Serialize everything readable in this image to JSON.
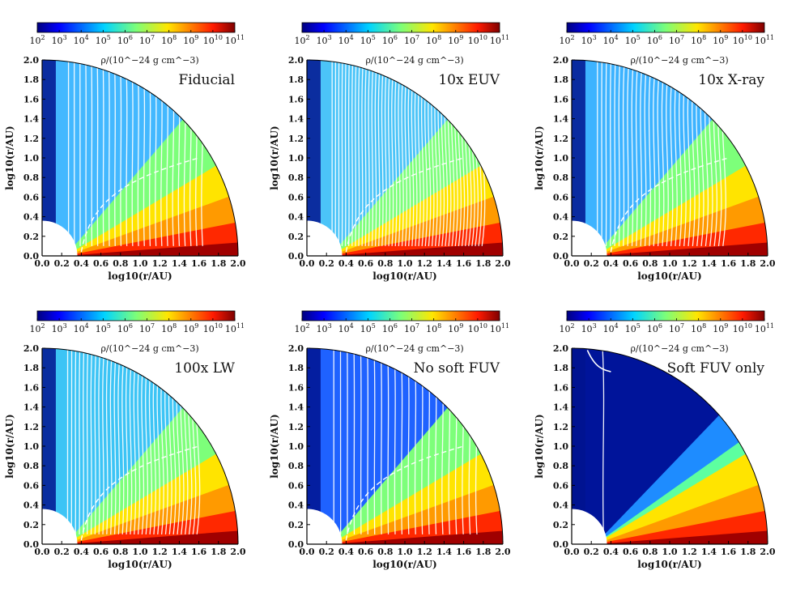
{
  "figure": {
    "colorbar": {
      "exponent_min": 2,
      "exponent_max": 11,
      "tick_labels": [
        "10^2",
        "10^3",
        "10^4",
        "10^5",
        "10^6",
        "10^7",
        "10^8",
        "10^9",
        "10^10",
        "10^11"
      ],
      "unit_label": "ρ/(10^−24 g cm^−3)",
      "colormap": "jet"
    },
    "axes": {
      "xlabel": "log10(r/AU)",
      "ylabel": "log10(r/AU)",
      "xlim": [
        0.0,
        2.0
      ],
      "ylim": [
        0.0,
        2.0
      ],
      "x_tick_labels": [
        "0.0",
        "0.2",
        "0.4",
        "0.6",
        "0.8",
        "1.0",
        "1.2",
        "1.4",
        "1.6",
        "1.8",
        "2.0"
      ],
      "y_tick_labels": [
        "0.0",
        "0.2",
        "0.4",
        "0.6",
        "0.8",
        "1.0",
        "1.2",
        "1.4",
        "1.6",
        "1.8",
        "2.0"
      ]
    },
    "panels": [
      {
        "title": "Fiducial",
        "streamline_count": 24,
        "streamline_extent": 0.84,
        "dashed_front": true,
        "bg": "#43b8ff"
      },
      {
        "title": "10x EUV",
        "streamline_count": 46,
        "streamline_extent": 0.92,
        "dashed_front": true,
        "bg": "#4bc4f8"
      },
      {
        "title": "10x X-ray",
        "streamline_count": 30,
        "streamline_extent": 0.78,
        "dashed_front": true,
        "bg": "#3db3ff"
      },
      {
        "title": "100x LW",
        "streamline_count": 34,
        "streamline_extent": 0.8,
        "dashed_front": true,
        "bg": "#3cc4f5"
      },
      {
        "title": "No soft FUV",
        "streamline_count": 22,
        "streamline_extent": 0.9,
        "dashed_front": true,
        "bg": "#1f62ff"
      },
      {
        "title": "Soft FUV only",
        "streamline_count": 1,
        "streamline_extent": 0.1,
        "dashed_front": false,
        "bg": "#00149a"
      }
    ]
  },
  "chart_data": [
    {
      "type": "heatmap",
      "title": "Fiducial",
      "xlabel": "log10(r/AU)",
      "ylabel": "log10(r/AU)",
      "xlim": [
        0,
        2
      ],
      "ylim": [
        0,
        2
      ],
      "colorbar_label": "ρ/(10^−24 g cm^−3)",
      "colorbar_range": [
        2,
        11
      ]
    },
    {
      "type": "heatmap",
      "title": "10x EUV",
      "xlabel": "log10(r/AU)",
      "ylabel": "log10(r/AU)",
      "xlim": [
        0,
        2
      ],
      "ylim": [
        0,
        2
      ],
      "colorbar_label": "ρ/(10^−24 g cm^−3)",
      "colorbar_range": [
        2,
        11
      ]
    },
    {
      "type": "heatmap",
      "title": "10x X-ray",
      "xlabel": "log10(r/AU)",
      "ylabel": "log10(r/AU)",
      "xlim": [
        0,
        2
      ],
      "ylim": [
        0,
        2
      ],
      "colorbar_label": "ρ/(10^−24 g cm^−3)",
      "colorbar_range": [
        2,
        11
      ]
    },
    {
      "type": "heatmap",
      "title": "100x LW",
      "xlabel": "log10(r/AU)",
      "ylabel": "log10(r/AU)",
      "xlim": [
        0,
        2
      ],
      "ylim": [
        0,
        2
      ],
      "colorbar_label": "ρ/(10^−24 g cm^−3)",
      "colorbar_range": [
        2,
        11
      ]
    },
    {
      "type": "heatmap",
      "title": "No soft FUV",
      "xlabel": "log10(r/AU)",
      "ylabel": "log10(r/AU)",
      "xlim": [
        0,
        2
      ],
      "ylim": [
        0,
        2
      ],
      "colorbar_label": "ρ/(10^−24 g cm^−3)",
      "colorbar_range": [
        2,
        11
      ]
    },
    {
      "type": "heatmap",
      "title": "Soft FUV only",
      "xlabel": "log10(r/AU)",
      "ylabel": "log10(r/AU)",
      "xlim": [
        0,
        2
      ],
      "ylim": [
        0,
        2
      ],
      "colorbar_label": "ρ/(10^−24 g cm^−3)",
      "colorbar_range": [
        2,
        11
      ]
    }
  ]
}
